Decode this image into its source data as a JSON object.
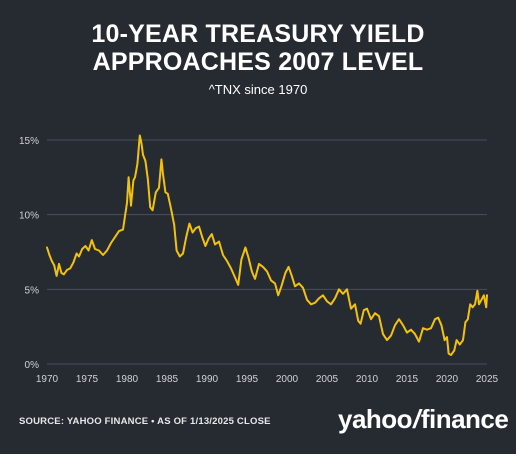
{
  "header": {
    "title_line1": "10-YEAR TREASURY YIELD",
    "title_line2": "APPROACHES 2007 LEVEL",
    "subtitle": "^TNX since 1970"
  },
  "footer": {
    "source": "SOURCE: YAHOO FINANCE • AS OF 1/13/2025 CLOSE",
    "logo_word1": "yahoo",
    "logo_slash": "/",
    "logo_word2": "finance"
  },
  "colors": {
    "background": "#262a31",
    "line": "#f2c20a",
    "grid": "#4a4f58",
    "tick_text": "#d0d2d6"
  },
  "chart_data": {
    "type": "line",
    "title": "10-YEAR TREASURY YIELD APPROACHES 2007 LEVEL",
    "subtitle": "^TNX since 1970",
    "xlabel": "",
    "ylabel": "",
    "xlim": [
      1970,
      2025
    ],
    "ylim": [
      0,
      15
    ],
    "grid": true,
    "x_ticks": [
      "1970",
      "1975",
      "1980",
      "1985",
      "1990",
      "1995",
      "2000",
      "2005",
      "2010",
      "2015",
      "2020",
      "2025"
    ],
    "y_ticks": [
      "0%",
      "5%",
      "10%",
      "15%"
    ],
    "y_tick_values": [
      0,
      5,
      10,
      15
    ],
    "series": [
      {
        "name": "^TNX",
        "x": [
          1970.0,
          1970.3,
          1970.6,
          1970.9,
          1971.2,
          1971.5,
          1971.8,
          1972.1,
          1972.5,
          1972.9,
          1973.3,
          1973.7,
          1974.0,
          1974.4,
          1974.8,
          1975.2,
          1975.6,
          1976.0,
          1976.5,
          1977.0,
          1977.5,
          1978.0,
          1978.5,
          1979.0,
          1979.5,
          1980.0,
          1980.2,
          1980.5,
          1980.8,
          1981.0,
          1981.3,
          1981.6,
          1981.8,
          1982.0,
          1982.3,
          1982.6,
          1982.9,
          1983.2,
          1983.6,
          1984.0,
          1984.3,
          1984.5,
          1984.8,
          1985.1,
          1985.5,
          1985.9,
          1986.2,
          1986.6,
          1987.0,
          1987.4,
          1987.8,
          1988.2,
          1988.6,
          1989.0,
          1989.4,
          1989.8,
          1990.2,
          1990.6,
          1991.0,
          1991.5,
          1992.0,
          1992.5,
          1993.0,
          1993.5,
          1993.9,
          1994.3,
          1994.8,
          1995.2,
          1995.6,
          1996.0,
          1996.5,
          1997.0,
          1997.5,
          1998.0,
          1998.5,
          1998.9,
          1999.3,
          1999.8,
          2000.2,
          2000.6,
          2001.0,
          2001.5,
          2002.0,
          2002.5,
          2003.0,
          2003.5,
          2004.0,
          2004.5,
          2005.0,
          2005.5,
          2006.0,
          2006.5,
          2007.0,
          2007.5,
          2008.0,
          2008.5,
          2008.9,
          2009.2,
          2009.6,
          2010.0,
          2010.5,
          2011.0,
          2011.5,
          2012.0,
          2012.5,
          2013.0,
          2013.5,
          2014.0,
          2014.5,
          2015.0,
          2015.5,
          2016.0,
          2016.5,
          2017.0,
          2017.5,
          2018.0,
          2018.5,
          2018.9,
          2019.3,
          2019.7,
          2020.0,
          2020.2,
          2020.5,
          2020.9,
          2021.2,
          2021.6,
          2022.0,
          2022.3,
          2022.6,
          2022.9,
          2023.2,
          2023.5,
          2023.8,
          2024.0,
          2024.3,
          2024.6,
          2024.9,
          2025.0
        ],
        "y": [
          7.8,
          7.3,
          6.9,
          6.6,
          5.9,
          6.7,
          6.1,
          6.0,
          6.3,
          6.4,
          6.8,
          7.4,
          7.2,
          7.7,
          7.9,
          7.6,
          8.3,
          7.7,
          7.6,
          7.3,
          7.6,
          8.1,
          8.5,
          8.9,
          9.0,
          10.8,
          12.5,
          10.6,
          12.3,
          12.5,
          13.4,
          15.3,
          14.8,
          14.0,
          13.6,
          12.4,
          10.5,
          10.3,
          11.5,
          11.8,
          13.7,
          12.7,
          11.5,
          11.4,
          10.4,
          9.3,
          7.6,
          7.2,
          7.4,
          8.5,
          9.4,
          8.8,
          9.1,
          9.2,
          8.5,
          7.9,
          8.4,
          8.7,
          8.0,
          8.2,
          7.3,
          6.9,
          6.4,
          5.8,
          5.3,
          7.0,
          7.8,
          7.1,
          6.2,
          5.7,
          6.7,
          6.5,
          6.2,
          5.6,
          5.4,
          4.6,
          5.2,
          6.1,
          6.5,
          5.9,
          5.2,
          5.4,
          5.1,
          4.3,
          4.0,
          4.1,
          4.4,
          4.6,
          4.2,
          4.0,
          4.4,
          5.0,
          4.7,
          5.0,
          3.7,
          4.0,
          2.9,
          2.7,
          3.6,
          3.7,
          3.0,
          3.4,
          3.2,
          2.0,
          1.6,
          1.9,
          2.6,
          3.0,
          2.6,
          2.1,
          2.3,
          2.0,
          1.5,
          2.4,
          2.3,
          2.4,
          3.0,
          3.1,
          2.6,
          1.6,
          1.8,
          0.7,
          0.6,
          0.9,
          1.6,
          1.3,
          1.6,
          2.8,
          3.0,
          4.0,
          3.8,
          4.0,
          4.9,
          4.0,
          4.3,
          4.6,
          3.8,
          4.6
        ]
      }
    ]
  }
}
